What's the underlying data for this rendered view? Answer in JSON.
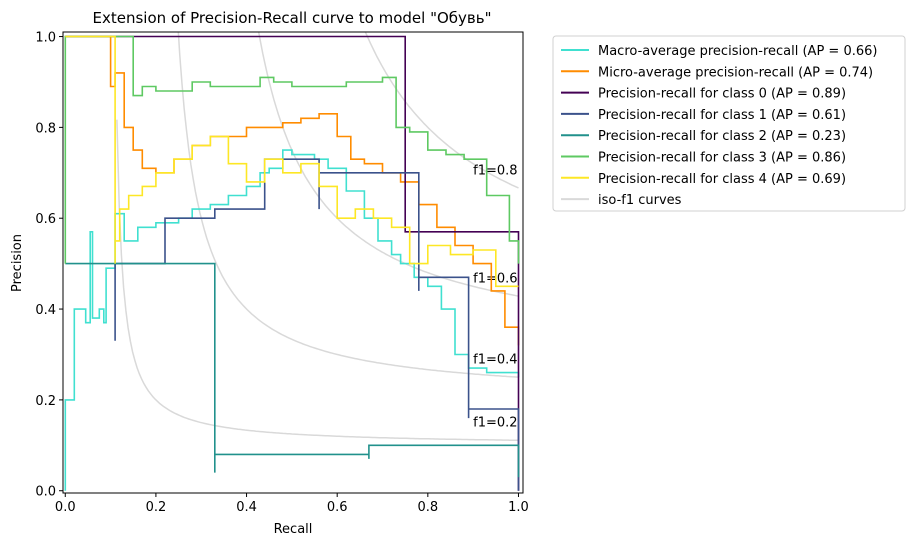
{
  "chart_data": {
    "type": "line",
    "title": "Extension of Precision-Recall curve to model \"Обувь\"",
    "xlabel": "Recall",
    "ylabel": "Precision",
    "xlim": [
      -0.005,
      1.01
    ],
    "ylim": [
      -0.005,
      1.01
    ],
    "x_ticks": [
      "0.0",
      "0.2",
      "0.4",
      "0.6",
      "0.8",
      "1.0"
    ],
    "y_ticks": [
      "0.0",
      "0.2",
      "0.4",
      "0.6",
      "0.8",
      "1.0"
    ],
    "grid": false,
    "legend_position": "outside upper right",
    "iso_f1": {
      "name": "iso-f1 curves",
      "color": "#d9d9d9",
      "values": [
        0.2,
        0.4,
        0.6,
        0.8
      ],
      "labels": [
        "f1=0.2",
        "f1=0.4",
        "f1=0.6",
        "f1=0.8"
      ]
    },
    "series": [
      {
        "name": "Macro-average precision-recall (AP = 0.66)",
        "color": "#40e0d0",
        "x": [
          0.0,
          0.0,
          0.02,
          0.02,
          0.045,
          0.045,
          0.055,
          0.055,
          0.06,
          0.06,
          0.075,
          0.075,
          0.085,
          0.085,
          0.09,
          0.09,
          0.11,
          0.11,
          0.13,
          0.13,
          0.16,
          0.16,
          0.17,
          0.17,
          0.2,
          0.2,
          0.25,
          0.25,
          0.28,
          0.28,
          0.32,
          0.32,
          0.36,
          0.36,
          0.4,
          0.4,
          0.43,
          0.43,
          0.45,
          0.45,
          0.48,
          0.48,
          0.5,
          0.5,
          0.55,
          0.55,
          0.58,
          0.58,
          0.62,
          0.62,
          0.66,
          0.66,
          0.69,
          0.69,
          0.72,
          0.72,
          0.74,
          0.74,
          0.77,
          0.77,
          0.8,
          0.8,
          0.83,
          0.83,
          0.86,
          0.86,
          0.89,
          0.89,
          0.93,
          0.93,
          1.0,
          1.0
        ],
        "y": [
          0.0,
          0.2,
          0.2,
          0.4,
          0.4,
          0.37,
          0.37,
          0.57,
          0.57,
          0.38,
          0.38,
          0.4,
          0.4,
          0.37,
          0.37,
          0.49,
          0.49,
          0.61,
          0.61,
          0.55,
          0.55,
          0.58,
          0.58,
          0.58,
          0.58,
          0.59,
          0.59,
          0.6,
          0.6,
          0.62,
          0.62,
          0.63,
          0.63,
          0.65,
          0.65,
          0.67,
          0.67,
          0.7,
          0.7,
          0.71,
          0.71,
          0.75,
          0.75,
          0.74,
          0.74,
          0.73,
          0.73,
          0.71,
          0.71,
          0.66,
          0.66,
          0.6,
          0.6,
          0.55,
          0.55,
          0.52,
          0.52,
          0.5,
          0.5,
          0.47,
          0.47,
          0.45,
          0.45,
          0.4,
          0.4,
          0.3,
          0.3,
          0.27,
          0.27,
          0.26,
          0.26,
          0.25
        ]
      },
      {
        "name": "Micro-average precision-recall (AP = 0.74)",
        "color": "#ff8c00",
        "x": [
          0.0,
          0.0,
          0.1,
          0.1,
          0.11,
          0.11,
          0.13,
          0.13,
          0.15,
          0.15,
          0.17,
          0.17,
          0.2,
          0.2,
          0.24,
          0.24,
          0.28,
          0.28,
          0.32,
          0.32,
          0.36,
          0.36,
          0.4,
          0.4,
          0.44,
          0.44,
          0.48,
          0.48,
          0.52,
          0.52,
          0.56,
          0.56,
          0.6,
          0.6,
          0.63,
          0.63,
          0.66,
          0.66,
          0.7,
          0.7,
          0.74,
          0.74,
          0.78,
          0.78,
          0.82,
          0.82,
          0.86,
          0.86,
          0.9,
          0.9,
          0.94,
          0.94,
          0.97,
          0.97,
          1.0,
          1.0
        ],
        "y": [
          1.0,
          1.0,
          1.0,
          0.89,
          0.89,
          0.92,
          0.92,
          0.8,
          0.8,
          0.75,
          0.75,
          0.71,
          0.71,
          0.7,
          0.7,
          0.73,
          0.73,
          0.76,
          0.76,
          0.78,
          0.78,
          0.78,
          0.78,
          0.8,
          0.8,
          0.8,
          0.8,
          0.81,
          0.81,
          0.82,
          0.82,
          0.83,
          0.83,
          0.78,
          0.78,
          0.73,
          0.73,
          0.72,
          0.72,
          0.7,
          0.7,
          0.68,
          0.68,
          0.63,
          0.63,
          0.58,
          0.58,
          0.54,
          0.54,
          0.5,
          0.5,
          0.44,
          0.44,
          0.36,
          0.36,
          0.32
        ]
      },
      {
        "name": "Precision-recall for class 0 (AP = 0.89)",
        "color": "#440154",
        "x": [
          0.0,
          0.75,
          0.75,
          1.0,
          1.0
        ],
        "y": [
          1.0,
          1.0,
          0.57,
          0.57,
          0.0
        ]
      },
      {
        "name": "Precision-recall for class 1 (AP = 0.61)",
        "color": "#3b528b",
        "x": [
          0.11,
          0.11,
          0.11,
          0.11,
          0.22,
          0.22,
          0.22,
          0.22,
          0.33,
          0.33,
          0.44,
          0.44,
          0.44,
          0.44,
          0.56,
          0.56,
          0.56,
          0.56,
          0.67,
          0.67,
          0.78,
          0.78,
          0.78,
          0.78,
          0.89,
          0.89,
          0.89,
          0.89,
          1.0,
          1.0
        ],
        "y": [
          0.33,
          0.5,
          0.5,
          0.5,
          0.5,
          0.6,
          0.6,
          0.6,
          0.6,
          0.62,
          0.62,
          0.71,
          0.71,
          0.73,
          0.73,
          0.62,
          0.62,
          0.7,
          0.7,
          0.7,
          0.7,
          0.44,
          0.44,
          0.47,
          0.47,
          0.16,
          0.16,
          0.18,
          0.18,
          0.0
        ]
      },
      {
        "name": "Precision-recall for class 2 (AP = 0.23)",
        "color": "#21918c",
        "x": [
          0.0,
          0.33,
          0.33,
          0.33,
          0.33,
          0.67,
          0.67,
          0.67,
          0.67,
          1.0,
          1.0
        ],
        "y": [
          0.5,
          0.5,
          0.04,
          0.04,
          0.08,
          0.08,
          0.07,
          0.07,
          0.1,
          0.1,
          0.03
        ]
      },
      {
        "name": "Precision-recall for class 3 (AP = 0.86)",
        "color": "#5ec962",
        "x": [
          0.0,
          0.0,
          0.15,
          0.15,
          0.17,
          0.17,
          0.2,
          0.2,
          0.28,
          0.28,
          0.32,
          0.32,
          0.4,
          0.4,
          0.43,
          0.43,
          0.46,
          0.46,
          0.5,
          0.5,
          0.56,
          0.56,
          0.62,
          0.62,
          0.65,
          0.65,
          0.7,
          0.7,
          0.73,
          0.73,
          0.76,
          0.76,
          0.8,
          0.8,
          0.84,
          0.84,
          0.88,
          0.88,
          0.93,
          0.93,
          0.98,
          0.98,
          1.0,
          1.0
        ],
        "y": [
          0.5,
          1.0,
          1.0,
          0.87,
          0.87,
          0.89,
          0.89,
          0.88,
          0.88,
          0.9,
          0.9,
          0.89,
          0.89,
          0.89,
          0.89,
          0.91,
          0.91,
          0.9,
          0.9,
          0.89,
          0.89,
          0.89,
          0.89,
          0.9,
          0.9,
          0.9,
          0.9,
          0.91,
          0.91,
          0.8,
          0.8,
          0.79,
          0.79,
          0.75,
          0.75,
          0.74,
          0.74,
          0.73,
          0.73,
          0.65,
          0.65,
          0.55,
          0.55,
          0.5
        ]
      },
      {
        "name": "Precision-recall for class 4 (AP = 0.69)",
        "color": "#fde725",
        "x": [
          0.0,
          0.11,
          0.11,
          0.11,
          0.11,
          0.12,
          0.12,
          0.14,
          0.14,
          0.17,
          0.17,
          0.2,
          0.2,
          0.24,
          0.24,
          0.28,
          0.28,
          0.32,
          0.32,
          0.36,
          0.36,
          0.4,
          0.4,
          0.44,
          0.44,
          0.48,
          0.48,
          0.52,
          0.52,
          0.56,
          0.56,
          0.6,
          0.6,
          0.64,
          0.64,
          0.68,
          0.68,
          0.72,
          0.72,
          0.76,
          0.76,
          0.8,
          0.8,
          0.85,
          0.85,
          0.9,
          0.9,
          0.95,
          0.95,
          1.0
        ],
        "y": [
          1.0,
          1.0,
          0.5,
          0.5,
          0.55,
          0.55,
          0.62,
          0.62,
          0.65,
          0.65,
          0.67,
          0.67,
          0.7,
          0.7,
          0.73,
          0.73,
          0.76,
          0.76,
          0.78,
          0.78,
          0.72,
          0.72,
          0.68,
          0.68,
          0.73,
          0.73,
          0.7,
          0.7,
          0.72,
          0.72,
          0.67,
          0.67,
          0.6,
          0.6,
          0.62,
          0.62,
          0.6,
          0.6,
          0.58,
          0.58,
          0.5,
          0.5,
          0.54,
          0.54,
          0.52,
          0.52,
          0.53,
          0.53,
          0.45,
          0.45
        ]
      }
    ]
  }
}
